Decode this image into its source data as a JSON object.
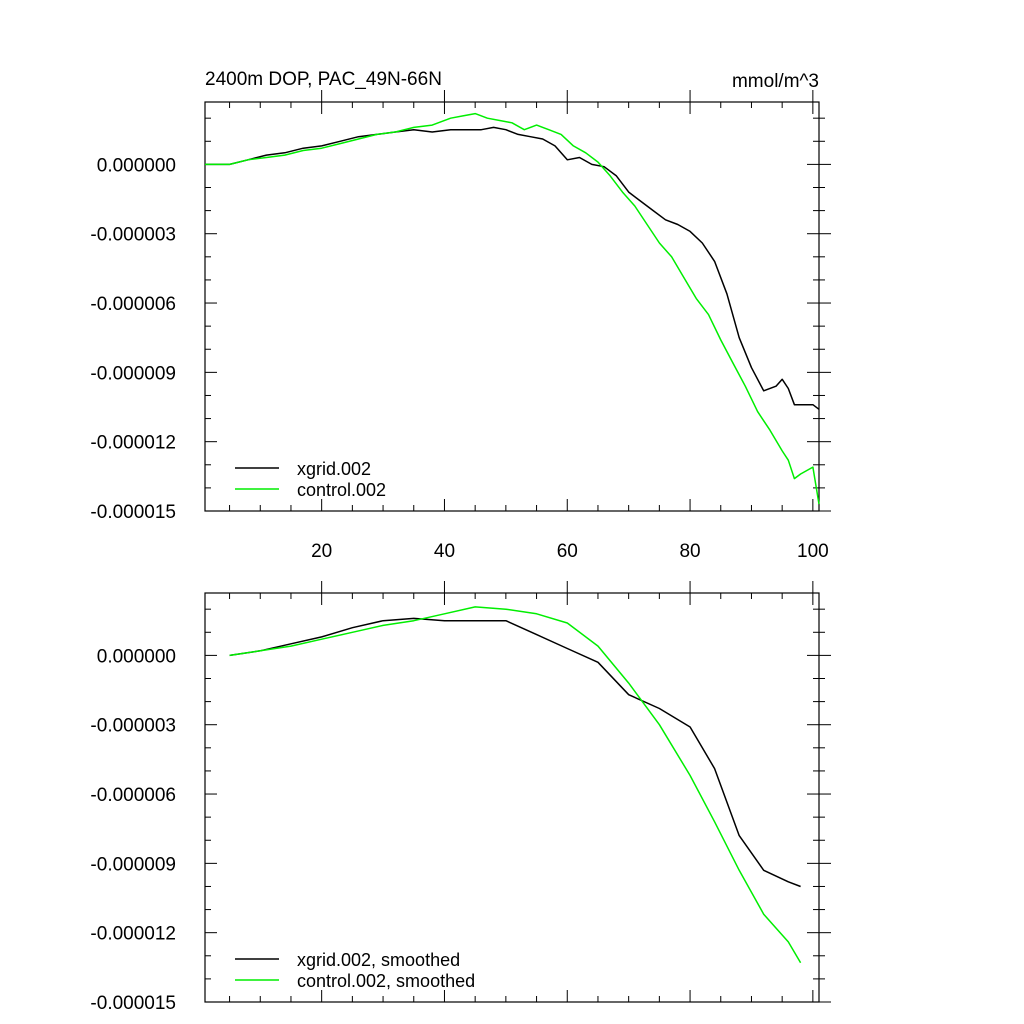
{
  "chart_data": [
    {
      "type": "line",
      "title": "2400m DOP, PAC_49N-66N",
      "units": "mmol/m^3",
      "xlabel": "",
      "ylabel": "",
      "xlim": [
        1,
        101
      ],
      "ylim": [
        -1.5e-05,
        2.7e-06
      ],
      "grid": false,
      "legend_position": "bottom-left",
      "xticks": [
        20,
        40,
        60,
        80,
        100
      ],
      "xtick_labels": [
        "20",
        "40",
        "60",
        "80",
        "100"
      ],
      "yticks": [
        0.0,
        -3e-06,
        -6e-06,
        -9e-06,
        -1.2e-05,
        -1.5e-05
      ],
      "ytick_labels": [
        "0.000000",
        "-0.000003",
        "-0.000006",
        "-0.000009",
        "-0.000012",
        "-0.000015"
      ],
      "series": [
        {
          "name": "xgrid.002",
          "color": "#000000",
          "x": [
            1,
            5,
            8,
            11,
            14,
            17,
            20,
            23,
            26,
            29,
            32,
            35,
            38,
            41,
            43,
            46,
            48,
            50,
            52,
            54,
            56,
            58,
            60,
            62,
            64,
            66,
            68,
            70,
            72,
            74,
            76,
            78,
            80,
            82,
            84,
            86,
            88,
            90,
            92,
            94,
            95,
            96,
            97,
            98,
            100,
            101
          ],
          "y": [
            0.0,
            0.0,
            2e-07,
            4e-07,
            5e-07,
            7e-07,
            8e-07,
            1e-06,
            1.2e-06,
            1.3e-06,
            1.4e-06,
            1.5e-06,
            1.4e-06,
            1.5e-06,
            1.5e-06,
            1.5e-06,
            1.6e-06,
            1.5e-06,
            1.3e-06,
            1.2e-06,
            1.1e-06,
            8e-07,
            2e-07,
            3e-07,
            0.0,
            -1e-07,
            -5e-07,
            -1.2e-06,
            -1.6e-06,
            -2e-06,
            -2.4e-06,
            -2.6e-06,
            -2.9e-06,
            -3.4e-06,
            -4.2e-06,
            -5.6e-06,
            -7.5e-06,
            -8.8e-06,
            -9.8e-06,
            -9.6e-06,
            -9.3e-06,
            -9.7e-06,
            -1.04e-05,
            -1.04e-05,
            -1.04e-05,
            -1.06e-05
          ]
        },
        {
          "name": "control.002",
          "color": "#00ee00",
          "x": [
            1,
            5,
            8,
            11,
            14,
            17,
            20,
            23,
            26,
            29,
            32,
            35,
            38,
            41,
            43,
            45,
            47,
            49,
            51,
            53,
            55,
            57,
            59,
            61,
            63,
            65,
            67,
            69,
            71,
            73,
            75,
            77,
            79,
            81,
            83,
            85,
            87,
            89,
            91,
            93,
            95,
            96,
            97,
            98,
            100,
            101
          ],
          "y": [
            0.0,
            0.0,
            2e-07,
            3e-07,
            4e-07,
            6e-07,
            7e-07,
            9e-07,
            1.1e-06,
            1.3e-06,
            1.4e-06,
            1.6e-06,
            1.7e-06,
            2e-06,
            2.1e-06,
            2.2e-06,
            2e-06,
            1.9e-06,
            1.8e-06,
            1.5e-06,
            1.7e-06,
            1.5e-06,
            1.3e-06,
            8e-07,
            5e-07,
            1e-07,
            -5e-07,
            -1.2e-06,
            -1.8e-06,
            -2.6e-06,
            -3.4e-06,
            -4e-06,
            -4.9e-06,
            -5.8e-06,
            -6.5e-06,
            -7.6e-06,
            -8.6e-06,
            -9.6e-06,
            -1.07e-05,
            -1.15e-05,
            -1.24e-05,
            -1.28e-05,
            -1.36e-05,
            -1.34e-05,
            -1.31e-05,
            -1.47e-05
          ]
        }
      ]
    },
    {
      "type": "line",
      "title": "",
      "xlabel": "",
      "ylabel": "",
      "xlim": [
        1,
        101
      ],
      "ylim": [
        -1.5e-05,
        2.7e-06
      ],
      "grid": false,
      "legend_position": "bottom-left",
      "xticks": [
        20,
        40,
        60,
        80,
        100
      ],
      "yticks": [
        0.0,
        -3e-06,
        -6e-06,
        -9e-06,
        -1.2e-05,
        -1.5e-05
      ],
      "ytick_labels": [
        "0.000000",
        "-0.000003",
        "-0.000006",
        "-0.000009",
        "-0.000012",
        "-0.000015"
      ],
      "series": [
        {
          "name": "xgrid.002, smoothed",
          "color": "#000000",
          "x": [
            5,
            10,
            15,
            20,
            25,
            30,
            35,
            40,
            45,
            50,
            55,
            60,
            65,
            70,
            75,
            80,
            84,
            88,
            92,
            96,
            98
          ],
          "y": [
            0.0,
            2e-07,
            5e-07,
            8e-07,
            1.2e-06,
            1.5e-06,
            1.6e-06,
            1.5e-06,
            1.5e-06,
            1.5e-06,
            9e-07,
            3e-07,
            -3e-07,
            -1.7e-06,
            -2.3e-06,
            -3.1e-06,
            -4.9e-06,
            -7.8e-06,
            -9.3e-06,
            -9.8e-06,
            -1e-05
          ]
        },
        {
          "name": "control.002, smoothed",
          "color": "#00ee00",
          "x": [
            5,
            10,
            15,
            20,
            25,
            30,
            35,
            40,
            45,
            50,
            55,
            60,
            65,
            70,
            75,
            80,
            84,
            88,
            92,
            96,
            98
          ],
          "y": [
            0.0,
            2e-07,
            4e-07,
            7e-07,
            1e-06,
            1.3e-06,
            1.5e-06,
            1.8e-06,
            2.1e-06,
            2e-06,
            1.8e-06,
            1.4e-06,
            4e-07,
            -1.2e-06,
            -3e-06,
            -5.2e-06,
            -7.2e-06,
            -9.3e-06,
            -1.12e-05,
            -1.24e-05,
            -1.33e-05
          ]
        }
      ]
    }
  ]
}
